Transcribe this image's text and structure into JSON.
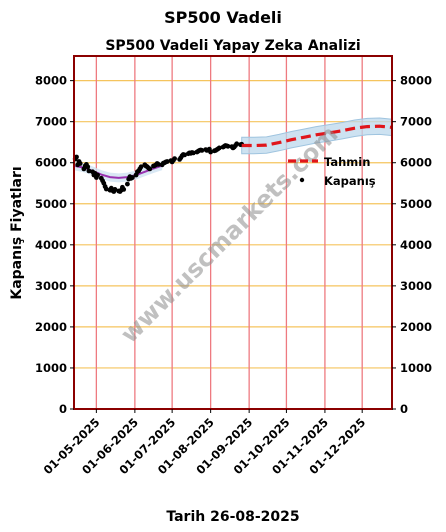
{
  "suptitle": "SP500 Vadeli",
  "chart_data": {
    "type": "line",
    "title": "SP500 Vadeli Yapay Zeka Analizi",
    "xlabel": "Tarih 26-08-2025",
    "ylabel": "Kapanış Fiyatları",
    "ylim": [
      0,
      8600
    ],
    "xlim": [
      "2025-04-13",
      "2025-12-25"
    ],
    "yticks": [
      0,
      1000,
      2000,
      3000,
      4000,
      5000,
      6000,
      7000,
      8000
    ],
    "xticks": [
      "01-05-2025",
      "01-06-2025",
      "01-07-2025",
      "01-08-2025",
      "01-09-2025",
      "01-10-2025",
      "01-11-2025",
      "01-12-2025"
    ],
    "xtick_dates": [
      "2025-05-01",
      "2025-06-01",
      "2025-07-01",
      "2025-08-01",
      "2025-09-01",
      "2025-10-01",
      "2025-11-01",
      "2025-12-01"
    ],
    "grid": true,
    "legend_position": "right",
    "legend": [
      "Tahmin",
      "Kapanış"
    ],
    "watermark": "www.uscmarkets.com",
    "series": [
      {
        "name": "Kapanış",
        "kind": "scatter",
        "color": "#000000",
        "points": [
          [
            "2025-04-14",
            6090
          ],
          [
            "2025-04-15",
            6140
          ],
          [
            "2025-04-16",
            5950
          ],
          [
            "2025-04-17",
            6030
          ],
          [
            "2025-04-18",
            5980
          ],
          [
            "2025-04-21",
            5850
          ],
          [
            "2025-04-22",
            5920
          ],
          [
            "2025-04-23",
            5960
          ],
          [
            "2025-04-24",
            5900
          ],
          [
            "2025-04-25",
            5800
          ],
          [
            "2025-04-28",
            5780
          ],
          [
            "2025-04-29",
            5700
          ],
          [
            "2025-04-30",
            5740
          ],
          [
            "2025-05-01",
            5640
          ],
          [
            "2025-05-02",
            5700
          ],
          [
            "2025-05-05",
            5620
          ],
          [
            "2025-05-06",
            5560
          ],
          [
            "2025-05-07",
            5500
          ],
          [
            "2025-05-08",
            5420
          ],
          [
            "2025-05-09",
            5360
          ],
          [
            "2025-05-12",
            5330
          ],
          [
            "2025-05-13",
            5380
          ],
          [
            "2025-05-14",
            5320
          ],
          [
            "2025-05-15",
            5300
          ],
          [
            "2025-05-16",
            5350
          ],
          [
            "2025-05-19",
            5310
          ],
          [
            "2025-05-20",
            5300
          ],
          [
            "2025-05-21",
            5330
          ],
          [
            "2025-05-22",
            5400
          ],
          [
            "2025-05-23",
            5350
          ],
          [
            "2025-05-26",
            5480
          ],
          [
            "2025-05-27",
            5600
          ],
          [
            "2025-05-28",
            5660
          ],
          [
            "2025-05-29",
            5620
          ],
          [
            "2025-05-30",
            5640
          ],
          [
            "2025-06-02",
            5700
          ],
          [
            "2025-06-03",
            5780
          ],
          [
            "2025-06-04",
            5800
          ],
          [
            "2025-06-05",
            5850
          ],
          [
            "2025-06-06",
            5900
          ],
          [
            "2025-06-09",
            5950
          ],
          [
            "2025-06-10",
            5920
          ],
          [
            "2025-06-11",
            5900
          ],
          [
            "2025-06-12",
            5870
          ],
          [
            "2025-06-13",
            5850
          ],
          [
            "2025-06-16",
            5920
          ],
          [
            "2025-06-17",
            5930
          ],
          [
            "2025-06-18",
            5950
          ],
          [
            "2025-06-19",
            5980
          ],
          [
            "2025-06-20",
            5960
          ],
          [
            "2025-06-23",
            5950
          ],
          [
            "2025-06-24",
            5990
          ],
          [
            "2025-06-25",
            6000
          ],
          [
            "2025-06-26",
            6020
          ],
          [
            "2025-06-27",
            6030
          ],
          [
            "2025-06-30",
            6050
          ],
          [
            "2025-07-01",
            6020
          ],
          [
            "2025-07-02",
            6060
          ],
          [
            "2025-07-03",
            6100
          ],
          [
            "2025-07-07",
            6080
          ],
          [
            "2025-07-08",
            6120
          ],
          [
            "2025-07-09",
            6170
          ],
          [
            "2025-07-10",
            6200
          ],
          [
            "2025-07-11",
            6190
          ],
          [
            "2025-07-14",
            6220
          ],
          [
            "2025-07-15",
            6240
          ],
          [
            "2025-07-16",
            6230
          ],
          [
            "2025-07-17",
            6250
          ],
          [
            "2025-07-18",
            6240
          ],
          [
            "2025-07-21",
            6260
          ],
          [
            "2025-07-22",
            6280
          ],
          [
            "2025-07-23",
            6300
          ],
          [
            "2025-07-24",
            6310
          ],
          [
            "2025-07-25",
            6300
          ],
          [
            "2025-07-28",
            6320
          ],
          [
            "2025-07-29",
            6300
          ],
          [
            "2025-07-30",
            6310
          ],
          [
            "2025-07-31",
            6330
          ],
          [
            "2025-08-01",
            6260
          ],
          [
            "2025-08-04",
            6290
          ],
          [
            "2025-08-05",
            6300
          ],
          [
            "2025-08-06",
            6320
          ],
          [
            "2025-08-07",
            6340
          ],
          [
            "2025-08-08",
            6360
          ],
          [
            "2025-08-11",
            6380
          ],
          [
            "2025-08-12",
            6400
          ],
          [
            "2025-08-13",
            6420
          ],
          [
            "2025-08-14",
            6410
          ],
          [
            "2025-08-15",
            6400
          ],
          [
            "2025-08-18",
            6390
          ],
          [
            "2025-08-19",
            6360
          ],
          [
            "2025-08-20",
            6380
          ],
          [
            "2025-08-21",
            6420
          ],
          [
            "2025-08-22",
            6460
          ],
          [
            "2025-08-25",
            6440
          ],
          [
            "2025-08-26",
            6450
          ]
        ]
      },
      {
        "name": "fit",
        "kind": "line",
        "color": "#9932b0",
        "points": [
          [
            "2025-04-14",
            5920
          ],
          [
            "2025-04-21",
            5880
          ],
          [
            "2025-04-28",
            5800
          ],
          [
            "2025-05-05",
            5710
          ],
          [
            "2025-05-12",
            5650
          ],
          [
            "2025-05-19",
            5630
          ],
          [
            "2025-05-26",
            5650
          ],
          [
            "2025-06-02",
            5700
          ],
          [
            "2025-06-09",
            5780
          ],
          [
            "2025-06-16",
            5860
          ],
          [
            "2025-06-23",
            5930
          ]
        ]
      },
      {
        "name": "Tahmin",
        "kind": "dashed",
        "color": "#e0151b",
        "points": [
          [
            "2025-08-26",
            6420
          ],
          [
            "2025-09-05",
            6420
          ],
          [
            "2025-09-15",
            6430
          ],
          [
            "2025-09-25",
            6490
          ],
          [
            "2025-10-05",
            6560
          ],
          [
            "2025-10-15",
            6620
          ],
          [
            "2025-10-25",
            6680
          ],
          [
            "2025-11-05",
            6730
          ],
          [
            "2025-11-15",
            6780
          ],
          [
            "2025-11-25",
            6840
          ],
          [
            "2025-12-05",
            6880
          ],
          [
            "2025-12-15",
            6890
          ],
          [
            "2025-12-25",
            6860
          ]
        ]
      }
    ]
  }
}
